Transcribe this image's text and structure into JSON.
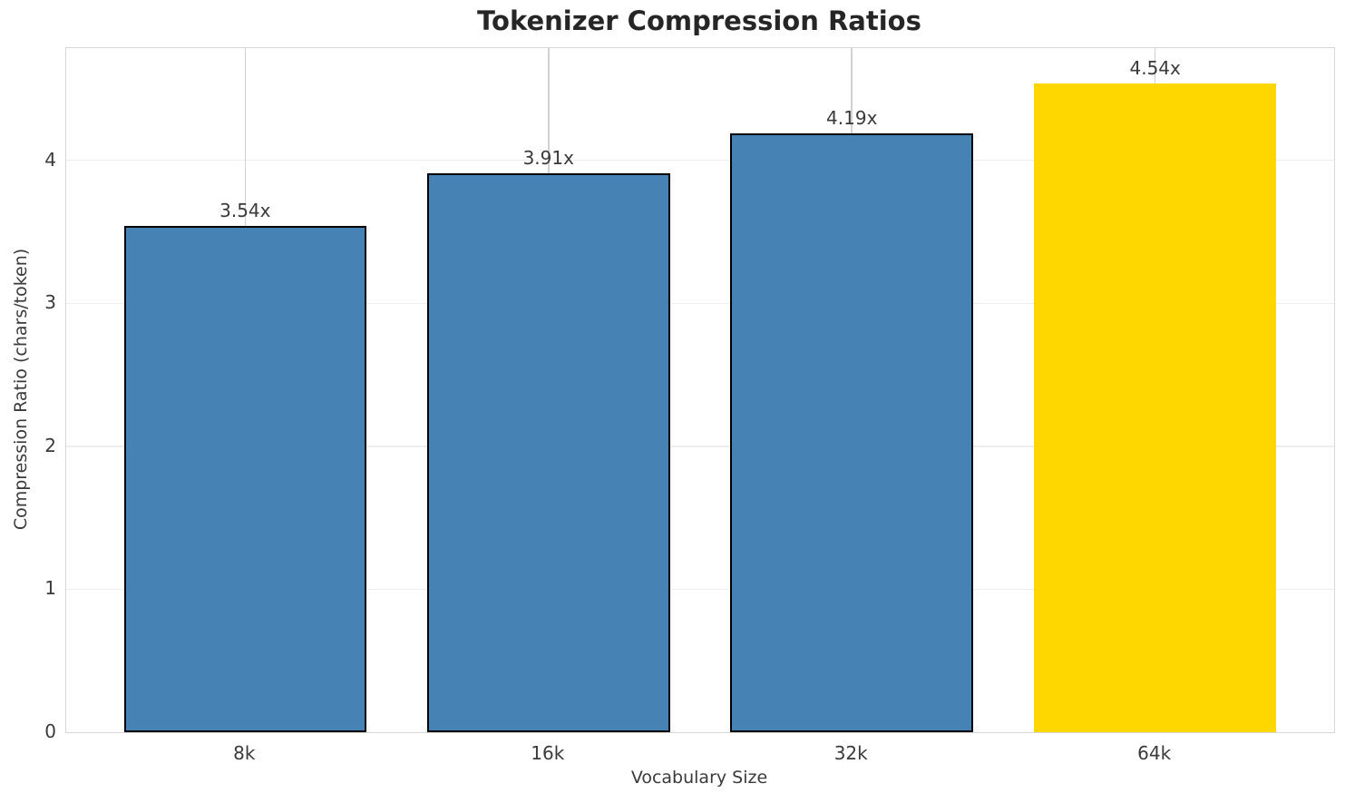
{
  "chart_data": {
    "type": "bar",
    "title": "Tokenizer Compression Ratios",
    "xlabel": "Vocabulary Size",
    "ylabel": "Compression Ratio (chars/token)",
    "categories": [
      "8k",
      "16k",
      "32k",
      "64k"
    ],
    "values": [
      3.54,
      3.91,
      4.19,
      4.54
    ],
    "bar_labels": [
      "3.54x",
      "3.91x",
      "4.19x",
      "4.54x"
    ],
    "ylim": [
      0,
      4.785
    ],
    "y_ticks": [
      0,
      1,
      2,
      3,
      4
    ],
    "grid": "on",
    "legend": "none",
    "bar_colors": [
      "#4682B4",
      "#4682B4",
      "#4682B4",
      "#FFD700"
    ],
    "bar_edge_colors": [
      "#000000",
      "#000000",
      "#000000",
      "none"
    ],
    "highlight_index": 3,
    "spine_color": "#d6d6d6",
    "text_color": "#3a3a3a",
    "title_color": "#262626"
  }
}
